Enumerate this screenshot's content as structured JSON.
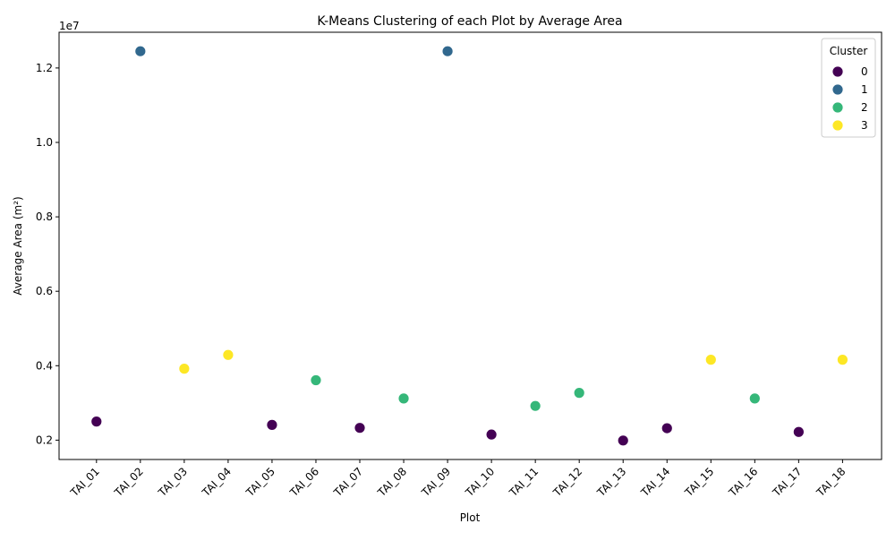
{
  "chart_data": {
    "type": "scatter",
    "title": "K-Means Clustering of each Plot by Average Area",
    "xlabel": "Plot",
    "ylabel": "Average Area (m²)",
    "y_offset_text": "1e7",
    "categories": [
      "TAI_01",
      "TAI_02",
      "TAI_03",
      "TAI_04",
      "TAI_05",
      "TAI_06",
      "TAI_07",
      "TAI_08",
      "TAI_09",
      "TAI_10",
      "TAI_11",
      "TAI_12",
      "TAI_13",
      "TAI_14",
      "TAI_15",
      "TAI_16",
      "TAI_17",
      "TAI_18"
    ],
    "values": [
      2500000,
      12450000,
      3920000,
      4290000,
      2410000,
      3610000,
      2330000,
      3120000,
      12450000,
      2150000,
      2920000,
      3270000,
      1990000,
      2320000,
      4160000,
      3120000,
      2220000,
      4160000
    ],
    "clusters": [
      0,
      1,
      3,
      3,
      0,
      2,
      0,
      2,
      1,
      0,
      2,
      2,
      0,
      0,
      3,
      2,
      0,
      3
    ],
    "ylim": [
      1480000,
      12960000
    ],
    "yticks": [
      2000000,
      4000000,
      6000000,
      8000000,
      10000000,
      12000000
    ],
    "ytick_labels": [
      "0.2",
      "0.4",
      "0.6",
      "0.8",
      "1.0",
      "1.2"
    ],
    "grid": false,
    "legend": {
      "title": "Cluster",
      "placement": "top-right",
      "entries": [
        {
          "label": "0",
          "color": "#440154"
        },
        {
          "label": "1",
          "color": "#31688e"
        },
        {
          "label": "2",
          "color": "#35b779"
        },
        {
          "label": "3",
          "color": "#fde725"
        }
      ]
    }
  }
}
